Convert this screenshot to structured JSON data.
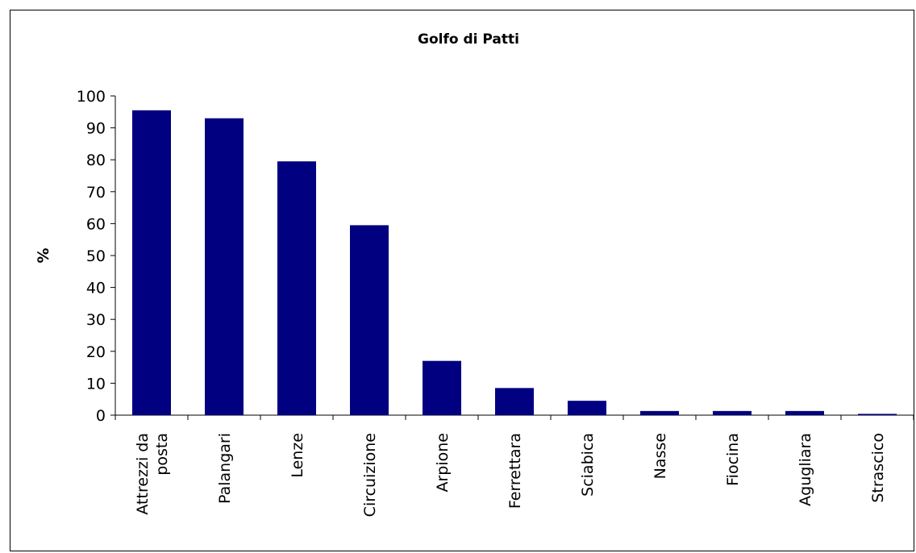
{
  "chart_data": {
    "type": "bar",
    "title": "Golfo di Patti",
    "xlabel": "",
    "ylabel": "%",
    "ylim": [
      0,
      100
    ],
    "yticks": [
      0,
      10,
      20,
      30,
      40,
      50,
      60,
      70,
      80,
      90,
      100
    ],
    "grid": false,
    "legend": "none",
    "bar_color": "#000080",
    "categories": [
      [
        "Attrezzi da",
        "posta"
      ],
      [
        "Palangari"
      ],
      [
        "Lenze"
      ],
      [
        "Circuizione"
      ],
      [
        "Arpione"
      ],
      [
        "Ferrettara"
      ],
      [
        "Sciabica"
      ],
      [
        "Nasse"
      ],
      [
        "Fiocina"
      ],
      [
        "Agugliara"
      ],
      [
        "Strascico"
      ]
    ],
    "values": [
      95.5,
      93,
      79.5,
      59.5,
      17,
      8.5,
      4.5,
      1.3,
      1.3,
      1.3,
      0.4
    ]
  }
}
